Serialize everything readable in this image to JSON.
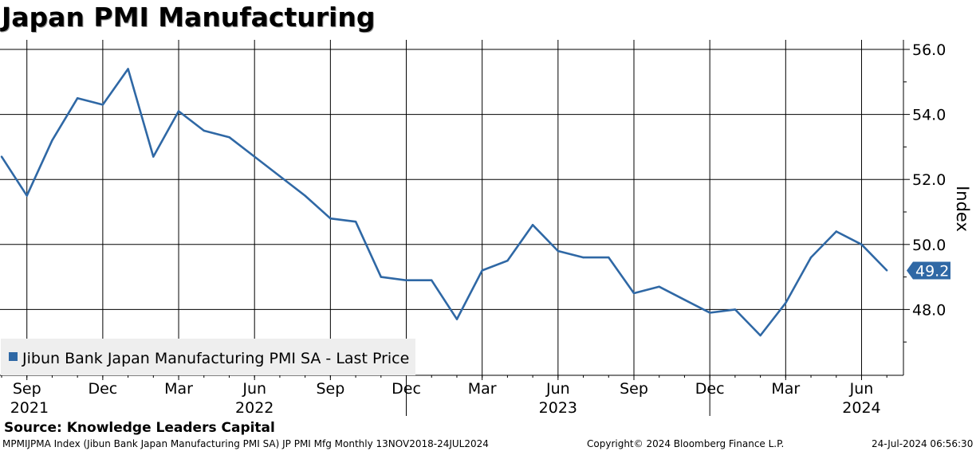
{
  "title": "Japan PMI Manufacturing",
  "colors": {
    "line": "#2f68a5",
    "grid": "#000000",
    "label_fill": "#2f68a5",
    "legend_bg": "#eeeeee"
  },
  "chart_data": {
    "type": "line",
    "title": "Japan PMI Manufacturing",
    "ylabel": "Index",
    "xlabel": "",
    "ylim": [
      46.0,
      56.5
    ],
    "yticks": [
      48.0,
      50.0,
      52.0,
      54.0,
      56.0
    ],
    "ytick_labels": [
      "48.0",
      "50.0",
      "52.0",
      "54.0",
      "56.0"
    ],
    "grid": true,
    "legend_position": "bottom-left",
    "months": [
      "2021-08",
      "2021-09",
      "2021-10",
      "2021-11",
      "2021-12",
      "2022-01",
      "2022-02",
      "2022-03",
      "2022-04",
      "2022-05",
      "2022-06",
      "2022-07",
      "2022-08",
      "2022-09",
      "2022-10",
      "2022-11",
      "2022-12",
      "2023-01",
      "2023-02",
      "2023-03",
      "2023-04",
      "2023-05",
      "2023-06",
      "2023-07",
      "2023-08",
      "2023-09",
      "2023-10",
      "2023-11",
      "2023-12",
      "2024-01",
      "2024-02",
      "2024-03",
      "2024-04",
      "2024-05",
      "2024-06",
      "2024-07"
    ],
    "series": [
      {
        "name": "Jibun Bank Japan Manufacturing PMI SA - Last Price",
        "values": [
          52.7,
          51.5,
          53.2,
          54.5,
          54.3,
          55.4,
          52.7,
          54.1,
          53.5,
          53.3,
          52.7,
          52.1,
          51.5,
          50.8,
          50.7,
          49.0,
          48.9,
          48.9,
          47.7,
          49.2,
          49.5,
          50.6,
          49.8,
          49.6,
          49.6,
          48.5,
          48.7,
          48.3,
          47.9,
          48.0,
          47.2,
          48.2,
          49.6,
          50.4,
          50.0,
          49.2
        ]
      }
    ],
    "x_tick_labels": [
      {
        "index": 1,
        "month": "Sep"
      },
      {
        "index": 4,
        "month": "Dec"
      },
      {
        "index": 7,
        "month": "Mar"
      },
      {
        "index": 10,
        "month": "Jun"
      },
      {
        "index": 13,
        "month": "Sep"
      },
      {
        "index": 16,
        "month": "Dec"
      },
      {
        "index": 19,
        "month": "Mar"
      },
      {
        "index": 22,
        "month": "Jun"
      },
      {
        "index": 25,
        "month": "Sep"
      },
      {
        "index": 28,
        "month": "Dec"
      },
      {
        "index": 31,
        "month": "Mar"
      },
      {
        "index": 34,
        "month": "Jun"
      }
    ],
    "year_labels": [
      {
        "label": "2021",
        "index": 1.1
      },
      {
        "label": "2022",
        "index": 10.0
      },
      {
        "label": "2023",
        "index": 22.0
      },
      {
        "label": "2024",
        "index": 34.0
      }
    ],
    "year_dividers": [
      16,
      28
    ],
    "last_value_label": "49.2"
  },
  "source": "Source: Knowledge Leaders Capital",
  "footer": {
    "left": "MPMIJPMA Index (Jibun Bank Japan Manufacturing PMI SA) JP PMI Mfg  Monthly 13NOV2018-24JUL2024",
    "middle": "Copyright© 2024 Bloomberg Finance L.P.",
    "right": "24-Jul-2024 06:56:30"
  }
}
